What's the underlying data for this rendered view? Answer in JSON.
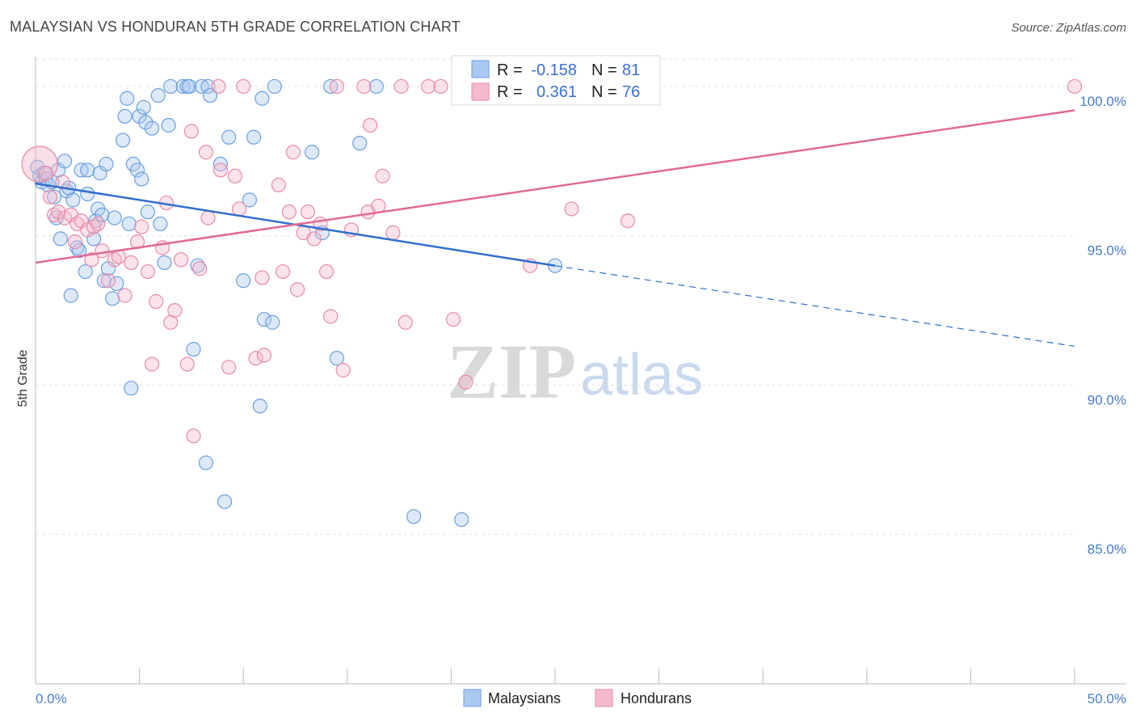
{
  "chart_data": {
    "type": "scatter",
    "title": "MALAYSIAN VS HONDURAN 5TH GRADE CORRELATION CHART",
    "source": "Source: ZipAtlas.com",
    "ylabel": "5th Grade",
    "xlim": [
      0,
      50
    ],
    "ylim": [
      80.0,
      101.0
    ],
    "y_ticks": [
      100.0,
      95.0,
      90.0,
      85.0
    ],
    "y_tick_labels": [
      "100.0%",
      "95.0%",
      "90.0%",
      "85.0%"
    ],
    "x_tick_labels": {
      "min": "0.0%",
      "max": "50.0%"
    },
    "watermark": {
      "zip": "ZIP",
      "atlas": "atlas"
    },
    "stats_legend": [
      {
        "series": "Malaysians",
        "r_label": "R =",
        "r": "-0.158",
        "n_label": "N =",
        "n": "81"
      },
      {
        "series": "Hondurans",
        "r_label": "R =",
        "r": "0.361",
        "n_label": "N =",
        "n": "76"
      }
    ],
    "series": [
      {
        "name": "Malaysians",
        "color": "#6a9fe0",
        "fill": "#aac8f0",
        "trend": {
          "x0": 0,
          "y0": 96.75,
          "x1": 25,
          "y1": 94.0,
          "dash_x1": 50,
          "dash_y1": 91.3,
          "color": "#2f6fce"
        },
        "points": [
          [
            0.1,
            97.3
          ],
          [
            0.2,
            97.0
          ],
          [
            0.3,
            96.8
          ],
          [
            0.4,
            97.1
          ],
          [
            0.5,
            96.9
          ],
          [
            0.6,
            96.7
          ],
          [
            0.8,
            96.8
          ],
          [
            0.9,
            96.3
          ],
          [
            1.0,
            95.6
          ],
          [
            1.1,
            97.2
          ],
          [
            1.2,
            94.9
          ],
          [
            1.4,
            97.5
          ],
          [
            1.5,
            96.5
          ],
          [
            1.6,
            96.6
          ],
          [
            1.7,
            93.0
          ],
          [
            1.8,
            96.2
          ],
          [
            2.0,
            94.6
          ],
          [
            2.1,
            94.5
          ],
          [
            2.2,
            97.2
          ],
          [
            2.4,
            93.8
          ],
          [
            2.5,
            97.2
          ],
          [
            2.5,
            96.4
          ],
          [
            2.8,
            94.9
          ],
          [
            2.9,
            95.5
          ],
          [
            3.0,
            95.9
          ],
          [
            3.1,
            97.1
          ],
          [
            3.2,
            95.7
          ],
          [
            3.3,
            93.5
          ],
          [
            3.4,
            97.4
          ],
          [
            3.5,
            93.9
          ],
          [
            3.7,
            92.9
          ],
          [
            3.8,
            95.6
          ],
          [
            3.9,
            93.4
          ],
          [
            4.2,
            98.2
          ],
          [
            4.3,
            99.0
          ],
          [
            4.4,
            99.6
          ],
          [
            4.5,
            95.4
          ],
          [
            4.6,
            89.9
          ],
          [
            4.7,
            97.4
          ],
          [
            4.9,
            97.2
          ],
          [
            5.0,
            99.0
          ],
          [
            5.1,
            96.9
          ],
          [
            5.2,
            99.3
          ],
          [
            5.3,
            98.8
          ],
          [
            5.4,
            95.8
          ],
          [
            5.6,
            98.6
          ],
          [
            5.9,
            99.7
          ],
          [
            6.0,
            95.4
          ],
          [
            6.2,
            94.1
          ],
          [
            6.4,
            98.7
          ],
          [
            6.5,
            100.0
          ],
          [
            7.1,
            100.0
          ],
          [
            7.3,
            100.0
          ],
          [
            7.4,
            100.0
          ],
          [
            7.6,
            91.2
          ],
          [
            7.8,
            94.0
          ],
          [
            8.0,
            100.0
          ],
          [
            8.2,
            87.4
          ],
          [
            8.3,
            100.0
          ],
          [
            8.4,
            99.7
          ],
          [
            8.9,
            97.4
          ],
          [
            9.1,
            86.1
          ],
          [
            9.3,
            98.3
          ],
          [
            10.0,
            93.5
          ],
          [
            10.3,
            96.2
          ],
          [
            10.5,
            98.3
          ],
          [
            10.8,
            89.3
          ],
          [
            10.9,
            99.6
          ],
          [
            11.0,
            92.2
          ],
          [
            11.4,
            92.1
          ],
          [
            11.5,
            100.0
          ],
          [
            13.3,
            97.8
          ],
          [
            13.8,
            95.1
          ],
          [
            14.2,
            100.0
          ],
          [
            14.5,
            90.9
          ],
          [
            15.6,
            98.1
          ],
          [
            16.4,
            100.0
          ],
          [
            18.2,
            85.6
          ],
          [
            20.5,
            85.5
          ],
          [
            24.2,
            100.0
          ],
          [
            25.0,
            94.0
          ]
        ]
      },
      {
        "name": "Hondurans",
        "color": "#e88aaa",
        "fill": "#f5b8cc",
        "trend": {
          "x0": 0,
          "y0": 94.1,
          "x1": 50,
          "y1": 99.2,
          "color": "#e06a97"
        },
        "points": [
          [
            0.2,
            97.4
          ],
          [
            0.5,
            97.1
          ],
          [
            0.7,
            96.3
          ],
          [
            0.9,
            95.7
          ],
          [
            1.1,
            95.8
          ],
          [
            1.3,
            96.8
          ],
          [
            1.4,
            95.6
          ],
          [
            1.7,
            95.7
          ],
          [
            1.9,
            94.8
          ],
          [
            2.0,
            95.4
          ],
          [
            2.2,
            95.5
          ],
          [
            2.5,
            95.2
          ],
          [
            2.7,
            94.2
          ],
          [
            2.8,
            95.3
          ],
          [
            3.0,
            95.4
          ],
          [
            3.2,
            94.5
          ],
          [
            3.5,
            93.5
          ],
          [
            3.8,
            94.2
          ],
          [
            4.0,
            94.3
          ],
          [
            4.3,
            93.0
          ],
          [
            4.6,
            94.1
          ],
          [
            4.9,
            94.8
          ],
          [
            5.1,
            95.3
          ],
          [
            5.4,
            93.8
          ],
          [
            5.6,
            90.7
          ],
          [
            5.8,
            92.8
          ],
          [
            6.1,
            94.6
          ],
          [
            6.3,
            96.1
          ],
          [
            6.5,
            92.1
          ],
          [
            6.7,
            92.5
          ],
          [
            7.0,
            94.2
          ],
          [
            7.3,
            90.7
          ],
          [
            7.5,
            98.5
          ],
          [
            7.6,
            88.3
          ],
          [
            7.9,
            93.9
          ],
          [
            8.2,
            97.8
          ],
          [
            8.3,
            95.6
          ],
          [
            8.8,
            100.0
          ],
          [
            8.9,
            97.2
          ],
          [
            9.3,
            90.6
          ],
          [
            9.6,
            97.0
          ],
          [
            9.8,
            95.9
          ],
          [
            10.0,
            100.0
          ],
          [
            10.6,
            90.9
          ],
          [
            10.9,
            93.6
          ],
          [
            11.0,
            91.0
          ],
          [
            11.7,
            96.7
          ],
          [
            11.9,
            93.8
          ],
          [
            12.2,
            95.8
          ],
          [
            12.4,
            97.8
          ],
          [
            12.6,
            93.2
          ],
          [
            12.9,
            95.1
          ],
          [
            13.1,
            95.8
          ],
          [
            13.4,
            94.9
          ],
          [
            13.7,
            95.4
          ],
          [
            14.0,
            93.8
          ],
          [
            14.2,
            92.3
          ],
          [
            14.5,
            100.0
          ],
          [
            14.8,
            90.5
          ],
          [
            15.2,
            95.2
          ],
          [
            15.8,
            100.0
          ],
          [
            16.0,
            95.8
          ],
          [
            16.1,
            98.7
          ],
          [
            16.5,
            96.0
          ],
          [
            16.7,
            97.0
          ],
          [
            17.2,
            95.1
          ],
          [
            17.6,
            100.0
          ],
          [
            17.8,
            92.1
          ],
          [
            18.9,
            100.0
          ],
          [
            19.5,
            100.0
          ],
          [
            20.1,
            92.2
          ],
          [
            20.7,
            90.1
          ],
          [
            23.8,
            94.0
          ],
          [
            25.8,
            95.9
          ],
          [
            28.5,
            95.5
          ],
          [
            50.0,
            100.0
          ]
        ]
      }
    ]
  },
  "legend": {
    "items": [
      {
        "label": "Malaysians"
      },
      {
        "label": "Hondurans"
      }
    ]
  }
}
